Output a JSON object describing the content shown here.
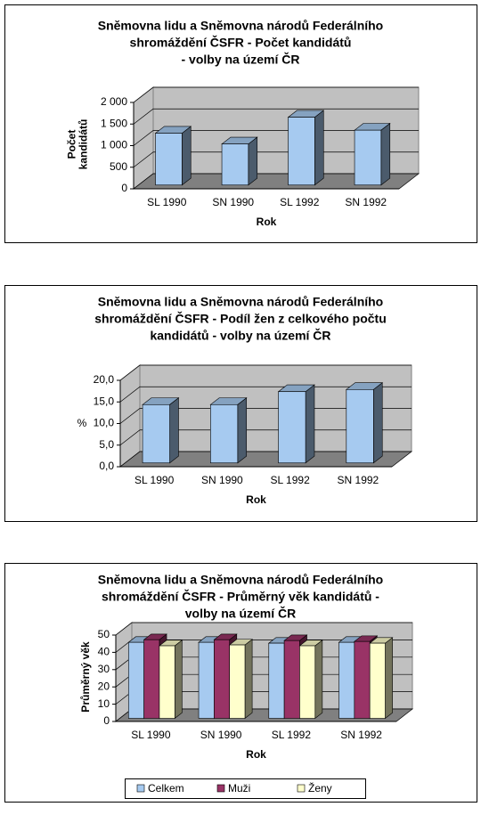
{
  "chart_data": [
    {
      "type": "bar3d",
      "title": [
        "Sněmovna lidu a Sněmovna národů Federálního",
        "shromáždění ČSFR - Počet kandidátů",
        "- volby na území ČR"
      ],
      "x_label": "Rok",
      "y_label": [
        "Počet",
        "kandidátů"
      ],
      "categories": [
        "SL 1990",
        "SN 1990",
        "SL 1992",
        "SN 1992"
      ],
      "values": [
        1200,
        950,
        1570,
        1270
      ],
      "color": "#a6caf0",
      "ylim": [
        0,
        2000
      ],
      "yticks": [
        0,
        500,
        {
          "value": 1000,
          "label": "1 000"
        },
        {
          "value": 1500,
          "label": "1 500"
        },
        {
          "value": 2000,
          "label": "2 000"
        }
      ],
      "grid": true
    },
    {
      "type": "bar3d",
      "title": [
        "Sněmovna lidu a Sněmovna národů Federálního",
        "shromáždění ČSFR - Podíl žen z celkového počtu",
        "kandidátů - volby na území ČR"
      ],
      "x_label": "Rok",
      "y_label": [
        "%"
      ],
      "categories": [
        "SL 1990",
        "SN 1990",
        "SL 1992",
        "SN 1992"
      ],
      "values": [
        13.5,
        13.5,
        16.5,
        17
      ],
      "color": "#a6caf0",
      "ylim": [
        0,
        20
      ],
      "yticks": [
        {
          "value": 0,
          "label": "0,0"
        },
        {
          "value": 5,
          "label": "5,0"
        },
        {
          "value": 10,
          "label": "10,0"
        },
        {
          "value": 15,
          "label": "15,0"
        },
        {
          "value": 20,
          "label": "20,0"
        }
      ],
      "grid": true
    },
    {
      "type": "grouped-bar3d",
      "title": [
        "Sněmovna lidu a Sněmovna národů Federálního",
        "shromáždění ČSFR - Průměrný věk kandidátů -",
        "volby na území ČR"
      ],
      "x_label": "Rok",
      "y_label": [
        "Průměrný věk"
      ],
      "categories": [
        "SL 1990",
        "SN 1990",
        "SL 1992",
        "SN 1992"
      ],
      "series": [
        {
          "name": "Celkem",
          "color": "#a6caf0",
          "values": [
            44,
            44,
            43.5,
            44
          ]
        },
        {
          "name": "Muži",
          "color": "#993366",
          "values": [
            45.5,
            45.5,
            45,
            44.5
          ]
        },
        {
          "name": "Ženy",
          "color": "#ffffcc",
          "values": [
            42,
            42.5,
            42,
            43.5
          ]
        }
      ],
      "ylim": [
        0,
        50
      ],
      "yticks": [
        0,
        10,
        20,
        30,
        40,
        50
      ],
      "grid": true,
      "legend": "bottom"
    }
  ]
}
